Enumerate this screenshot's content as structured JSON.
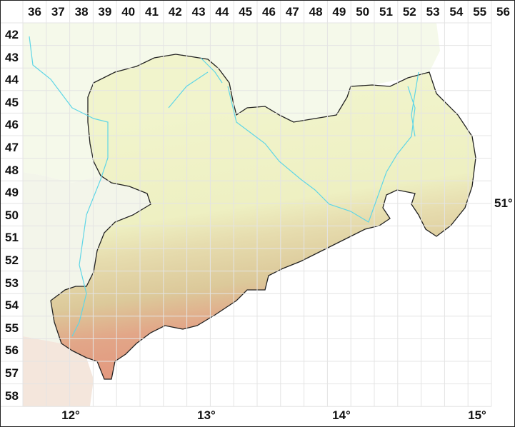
{
  "grid": {
    "columns": [
      "36",
      "37",
      "38",
      "39",
      "40",
      "41",
      "42",
      "43",
      "44",
      "45",
      "46",
      "47",
      "48",
      "49",
      "50",
      "51",
      "52",
      "53",
      "54",
      "55",
      "56"
    ],
    "rows": [
      "42",
      "43",
      "44",
      "45",
      "46",
      "47",
      "48",
      "49",
      "50",
      "51",
      "52",
      "53",
      "54",
      "55",
      "56",
      "57",
      "58"
    ]
  },
  "longitude_labels": [
    "12°",
    "13°",
    "14°",
    "15°"
  ],
  "latitude_labels": [
    "51°"
  ],
  "colors": {
    "outline": "#222222",
    "river": "#5fd6e6",
    "lowland": "#eef3c8",
    "hills": "#e2d9a8",
    "highland": "#e4a88a",
    "outside": "#f6f9ee",
    "grid": "#e6e6e6"
  }
}
